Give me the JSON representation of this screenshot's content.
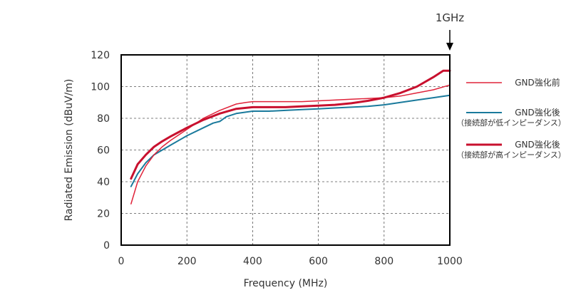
{
  "chart_data": {
    "type": "line",
    "title": "",
    "xlabel": "Frequency (MHz)",
    "ylabel": "Radiated Emission (dBuV/m)",
    "xlim": [
      0,
      1000
    ],
    "ylim": [
      0,
      120
    ],
    "xticks": [
      0,
      200,
      400,
      600,
      800,
      1000
    ],
    "yticks": [
      0,
      20,
      40,
      60,
      80,
      100,
      120
    ],
    "grid": true,
    "legend_position": "right",
    "annotation": {
      "text": "1GHz",
      "x": 1000
    },
    "series": [
      {
        "name": "GND強化前",
        "sub_label": "",
        "color": "#e0233a",
        "width": 1.5,
        "x": [
          30,
          50,
          75,
          100,
          125,
          150,
          200,
          250,
          300,
          350,
          380,
          400,
          450,
          500,
          550,
          600,
          650,
          700,
          750,
          800,
          850,
          900,
          950,
          1000
        ],
        "y": [
          26,
          40,
          50,
          57,
          62,
          66,
          73,
          80,
          85,
          89,
          90,
          90.5,
          90.5,
          90.5,
          90.5,
          91,
          91.5,
          92,
          92.5,
          93,
          94,
          96,
          98,
          101
        ]
      },
      {
        "name": "GND強化後",
        "sub_label": "（接続部が低インピーダンス）",
        "color": "#1a7a9c",
        "width": 2,
        "x": [
          30,
          50,
          75,
          100,
          125,
          150,
          200,
          250,
          280,
          300,
          320,
          350,
          400,
          450,
          500,
          550,
          600,
          650,
          700,
          750,
          800,
          850,
          900,
          950,
          1000
        ],
        "y": [
          37,
          45,
          52,
          57,
          60,
          63,
          69,
          74,
          77,
          78,
          81,
          83,
          84.5,
          84.5,
          85,
          85.5,
          86,
          86.5,
          87,
          87.5,
          88.5,
          90,
          91.5,
          93,
          94.5
        ]
      },
      {
        "name": "GND強化後",
        "sub_label": "（接続部が高インピーダンス）",
        "color": "#c8102e",
        "width": 3,
        "x": [
          30,
          50,
          75,
          100,
          125,
          150,
          200,
          250,
          300,
          350,
          400,
          450,
          500,
          550,
          600,
          650,
          700,
          750,
          800,
          850,
          900,
          950,
          980,
          1000
        ],
        "y": [
          42,
          51,
          57,
          62,
          65.5,
          68.5,
          74,
          79,
          83,
          86,
          87,
          87,
          87,
          87.5,
          88,
          88.5,
          89.5,
          91,
          93,
          96,
          100,
          106,
          110,
          110
        ]
      }
    ]
  }
}
